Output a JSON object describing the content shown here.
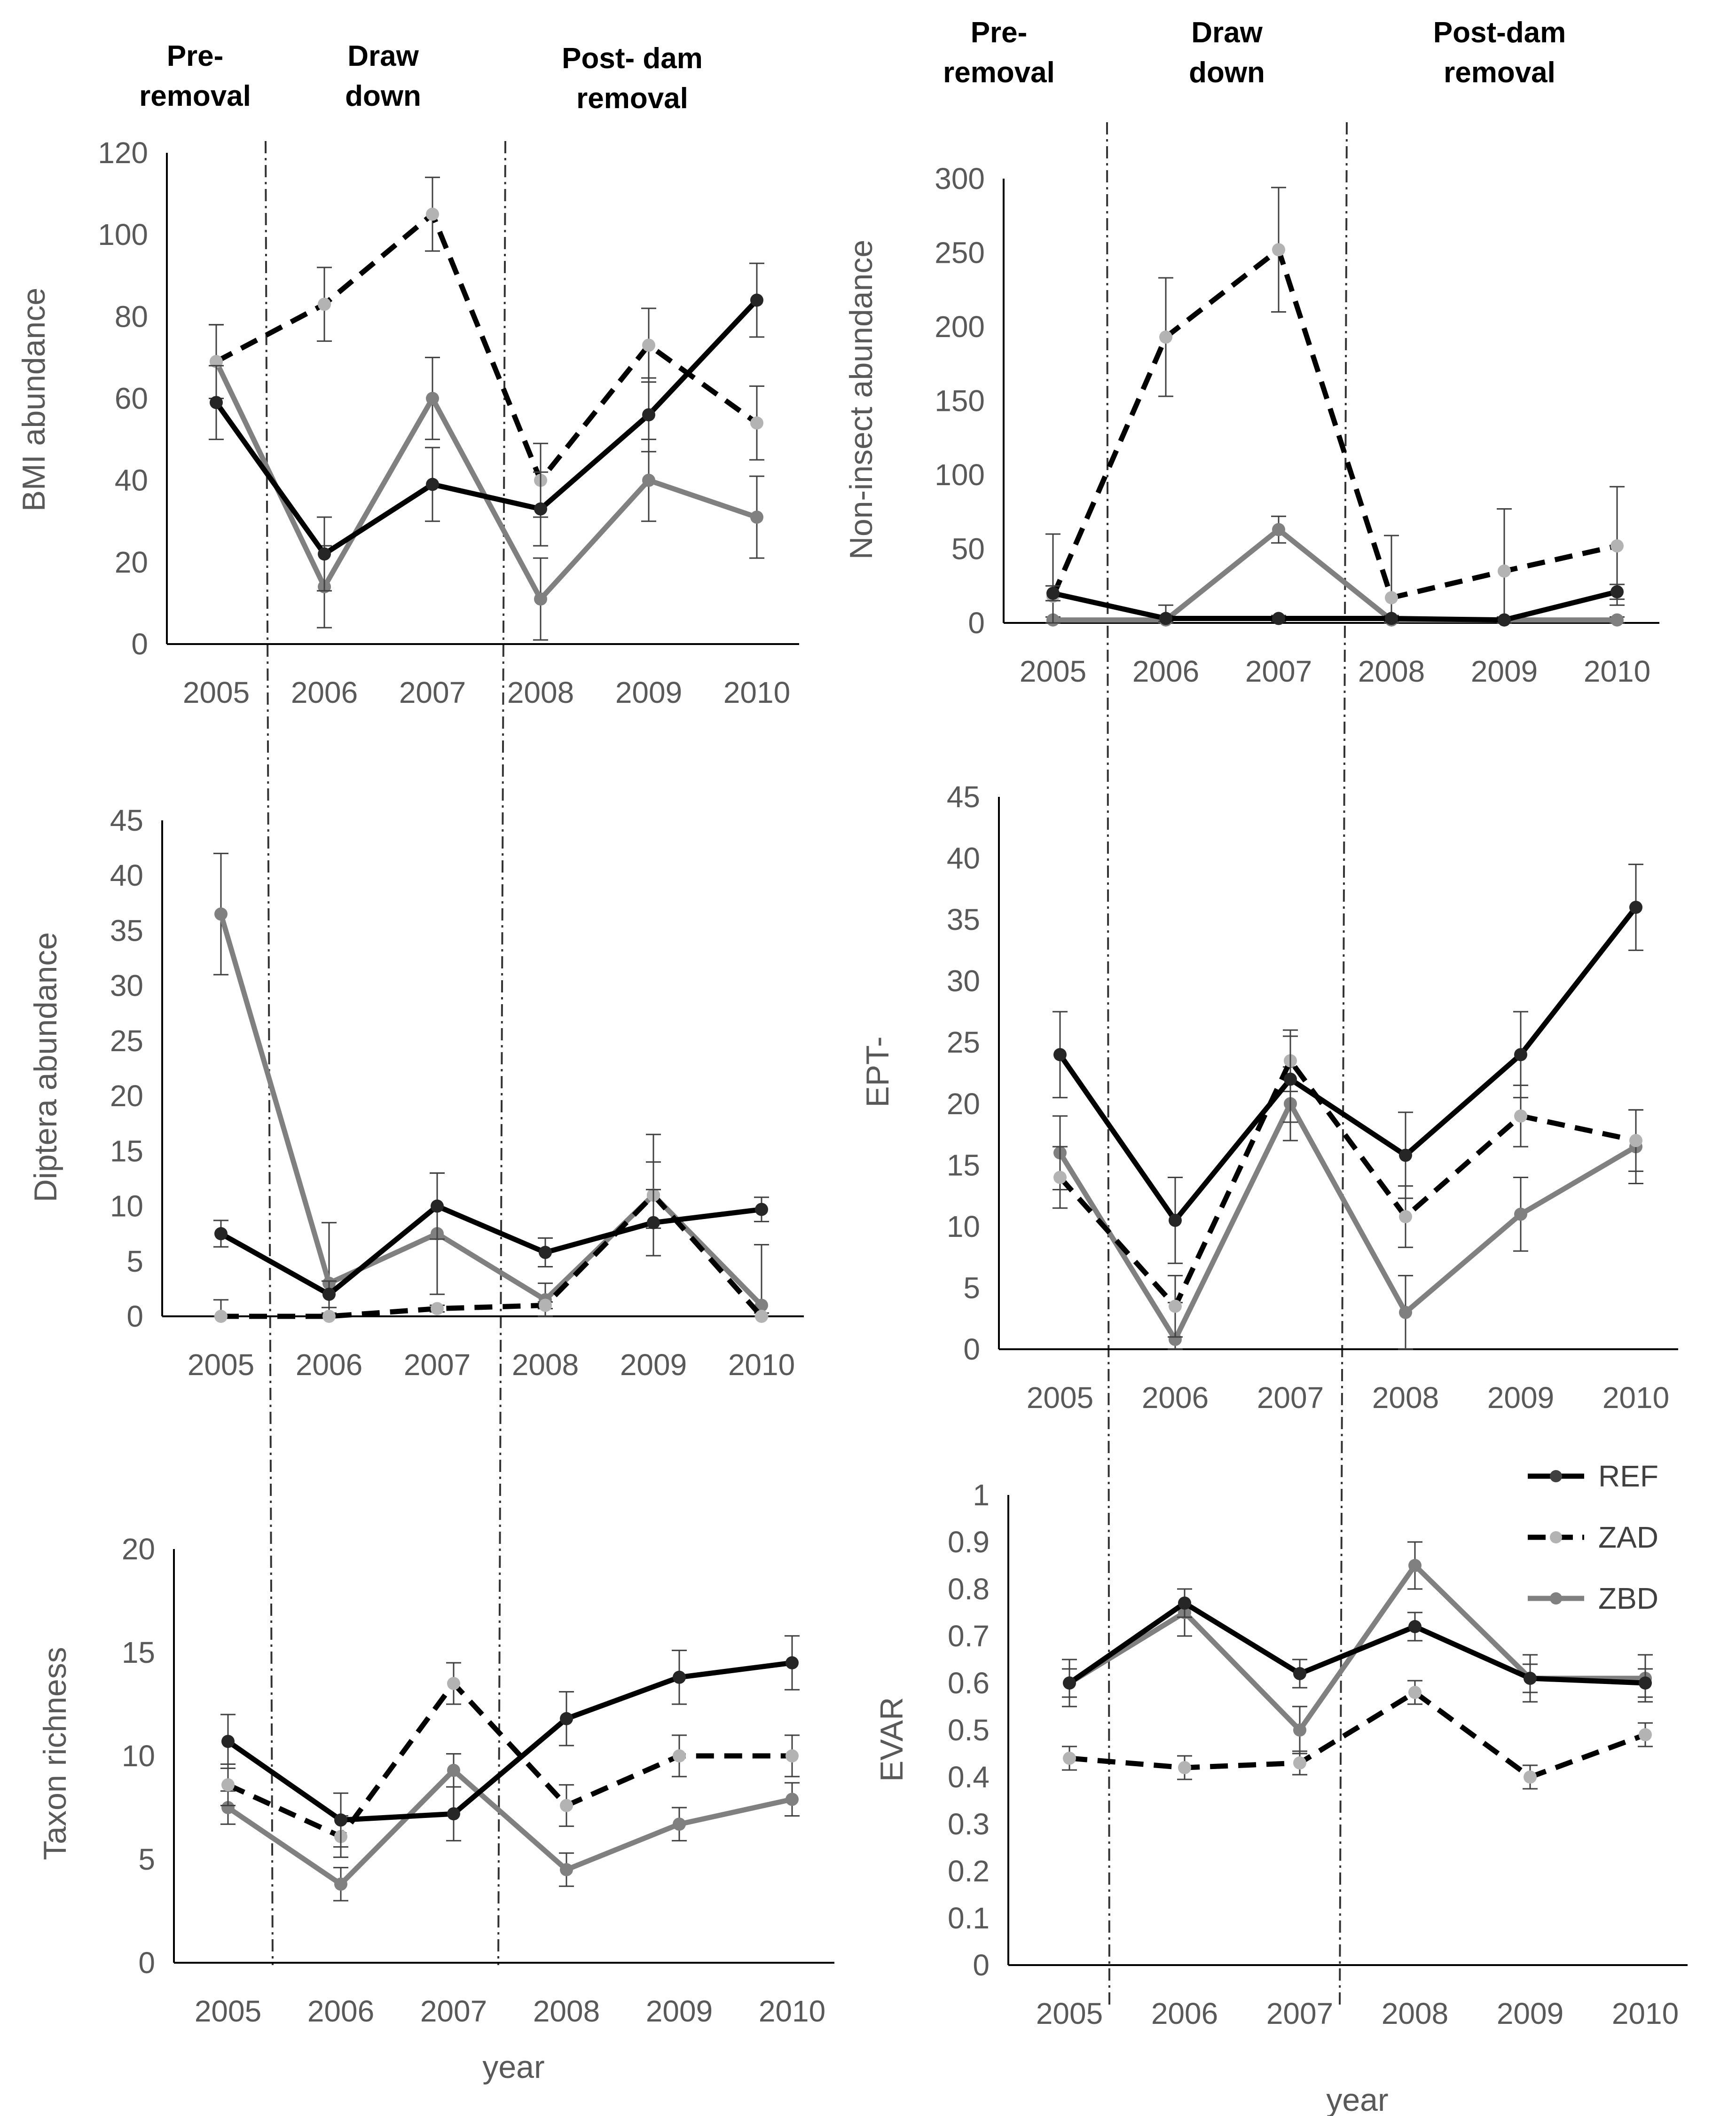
{
  "series_styles": {
    "REF": {
      "color": "#000000",
      "dash": "solid"
    },
    "ZAD": {
      "color": "#000000",
      "dash": "dashed",
      "marker": "#b3b3b3"
    },
    "ZBD": {
      "color": "#808080",
      "dash": "solid"
    }
  },
  "legend": [
    "REF",
    "ZAD",
    "ZBD"
  ],
  "phases": [
    {
      "line1": "Pre-",
      "line2": "removal"
    },
    {
      "line1": "Draw",
      "line2": "down"
    },
    {
      "line1": "Post- dam",
      "line2": "removal"
    }
  ],
  "phases_right": [
    {
      "line1": "Pre-",
      "line2": "removal"
    },
    {
      "line1": "Draw",
      "line2": "down"
    },
    {
      "line1": "Post-dam",
      "line2": "removal"
    }
  ],
  "chart_data": [
    {
      "type": "line",
      "id": "bmi",
      "ylabel": "BMI abundance",
      "xlabel": "",
      "categories": [
        "2005",
        "2006",
        "2007",
        "2008",
        "2009",
        "2010"
      ],
      "ylim": [
        0,
        120
      ],
      "yticks": [
        "0",
        "20",
        "40",
        "60",
        "80",
        "100",
        "120"
      ],
      "series": [
        {
          "name": "REF",
          "values": [
            59,
            22,
            39,
            33,
            56,
            84
          ],
          "errors": [
            9,
            9,
            9,
            9,
            9,
            9
          ]
        },
        {
          "name": "ZAD",
          "values": [
            69,
            83,
            105,
            40,
            73,
            54
          ],
          "errors": [
            9,
            9,
            9,
            9,
            9,
            9
          ]
        },
        {
          "name": "ZBD",
          "values": [
            69,
            14,
            60,
            11,
            40,
            31
          ],
          "errors": [
            9,
            10,
            10,
            10,
            10,
            10
          ]
        }
      ]
    },
    {
      "type": "line",
      "id": "noninsect",
      "ylabel": "Non-insect abundance",
      "xlabel": "",
      "categories": [
        "2005",
        "2006",
        "2007",
        "2008",
        "2009",
        "2010"
      ],
      "ylim": [
        0,
        300
      ],
      "yticks": [
        "0",
        "50",
        "100",
        "150",
        "200",
        "250",
        "300"
      ],
      "series": [
        {
          "name": "REF",
          "values": [
            20,
            3,
            3,
            3,
            2,
            21
          ],
          "errors": [
            5,
            2,
            2,
            2,
            2,
            5
          ]
        },
        {
          "name": "ZAD",
          "values": [
            18,
            193,
            252,
            17,
            35,
            52
          ],
          "errors": [
            42,
            40,
            42,
            42,
            42,
            40
          ]
        },
        {
          "name": "ZBD",
          "values": [
            2,
            2,
            63,
            2,
            2,
            2
          ],
          "errors": [
            2,
            10,
            9,
            2,
            2,
            2
          ]
        }
      ]
    },
    {
      "type": "line",
      "id": "diptera",
      "ylabel": "Diptera abundance",
      "xlabel": "",
      "categories": [
        "2005",
        "2006",
        "2007",
        "2008",
        "2009",
        "2010"
      ],
      "ylim": [
        0,
        45
      ],
      "yticks": [
        "0",
        "5",
        "10",
        "15",
        "20",
        "25",
        "30",
        "35",
        "40",
        "45"
      ],
      "series": [
        {
          "name": "REF",
          "values": [
            7.5,
            2,
            10,
            5.8,
            8.5,
            9.7
          ],
          "errors": [
            1.2,
            1.2,
            3,
            1.3,
            3,
            1.1
          ]
        },
        {
          "name": "ZAD",
          "values": [
            0,
            0,
            0.7,
            1,
            11,
            0
          ],
          "errors": [
            1.5,
            0.3,
            0.3,
            0.3,
            3,
            0.3
          ]
        },
        {
          "name": "ZBD",
          "values": [
            36.5,
            3,
            7.5,
            1.5,
            11,
            1
          ],
          "errors": [
            5.5,
            5.5,
            5.5,
            1.5,
            5.5,
            5.5
          ]
        }
      ]
    },
    {
      "type": "line",
      "id": "ept",
      "ylabel": "EPT-",
      "xlabel": "",
      "categories": [
        "2005",
        "2006",
        "2007",
        "2008",
        "2009",
        "2010"
      ],
      "ylim": [
        0,
        45
      ],
      "yticks": [
        "0",
        "5",
        "10",
        "15",
        "20",
        "25",
        "30",
        "35",
        "40",
        "45"
      ],
      "series": [
        {
          "name": "REF",
          "values": [
            24,
            10.5,
            22,
            15.8,
            24,
            36
          ],
          "errors": [
            3.5,
            3.5,
            3.5,
            3.5,
            3.5,
            3.5
          ]
        },
        {
          "name": "ZAD",
          "values": [
            14,
            3.5,
            23.5,
            10.8,
            19,
            17
          ],
          "errors": [
            2.5,
            2.5,
            2.5,
            2.5,
            2.5,
            2.5
          ]
        },
        {
          "name": "ZBD",
          "values": [
            16,
            0.8,
            20,
            3,
            11,
            16.5
          ],
          "errors": [
            3,
            3,
            3,
            3,
            3,
            3
          ]
        }
      ]
    },
    {
      "type": "line",
      "id": "taxon",
      "ylabel": "Taxon richness",
      "xlabel": "year",
      "categories": [
        "2005",
        "2006",
        "2007",
        "2008",
        "2009",
        "2010"
      ],
      "ylim": [
        0,
        20
      ],
      "yticks": [
        "0",
        "5",
        "10",
        "15",
        "20"
      ],
      "series": [
        {
          "name": "REF",
          "values": [
            10.7,
            6.9,
            7.2,
            11.8,
            13.8,
            14.5
          ],
          "errors": [
            1.3,
            1.3,
            1.3,
            1.3,
            1.3,
            1.3
          ]
        },
        {
          "name": "ZAD",
          "values": [
            8.6,
            6.1,
            13.5,
            7.6,
            10,
            10
          ],
          "errors": [
            1,
            1,
            1,
            1,
            1,
            1
          ]
        },
        {
          "name": "ZBD",
          "values": [
            7.5,
            3.8,
            9.3,
            4.5,
            6.7,
            7.9
          ],
          "errors": [
            0.8,
            0.8,
            0.8,
            0.8,
            0.8,
            0.8
          ]
        }
      ]
    },
    {
      "type": "line",
      "id": "evar",
      "ylabel": "EVAR",
      "xlabel": "year",
      "categories": [
        "2005",
        "2006",
        "2007",
        "2008",
        "2009",
        "2010"
      ],
      "ylim": [
        0,
        1
      ],
      "yticks": [
        "0",
        "0.1",
        "0.2",
        "0.3",
        "0.4",
        "0.5",
        "0.6",
        "0.7",
        "0.8",
        "0.9",
        "1"
      ],
      "series": [
        {
          "name": "REF",
          "values": [
            0.6,
            0.77,
            0.62,
            0.72,
            0.61,
            0.6
          ],
          "errors": [
            0.03,
            0.03,
            0.03,
            0.03,
            0.03,
            0.03
          ]
        },
        {
          "name": "ZAD",
          "values": [
            0.44,
            0.42,
            0.43,
            0.58,
            0.4,
            0.49
          ],
          "errors": [
            0.025,
            0.025,
            0.025,
            0.025,
            0.025,
            0.025
          ]
        },
        {
          "name": "ZBD",
          "values": [
            0.6,
            0.75,
            0.5,
            0.85,
            0.61,
            0.61
          ],
          "errors": [
            0.05,
            0.05,
            0.05,
            0.05,
            0.05,
            0.05
          ]
        }
      ]
    }
  ]
}
